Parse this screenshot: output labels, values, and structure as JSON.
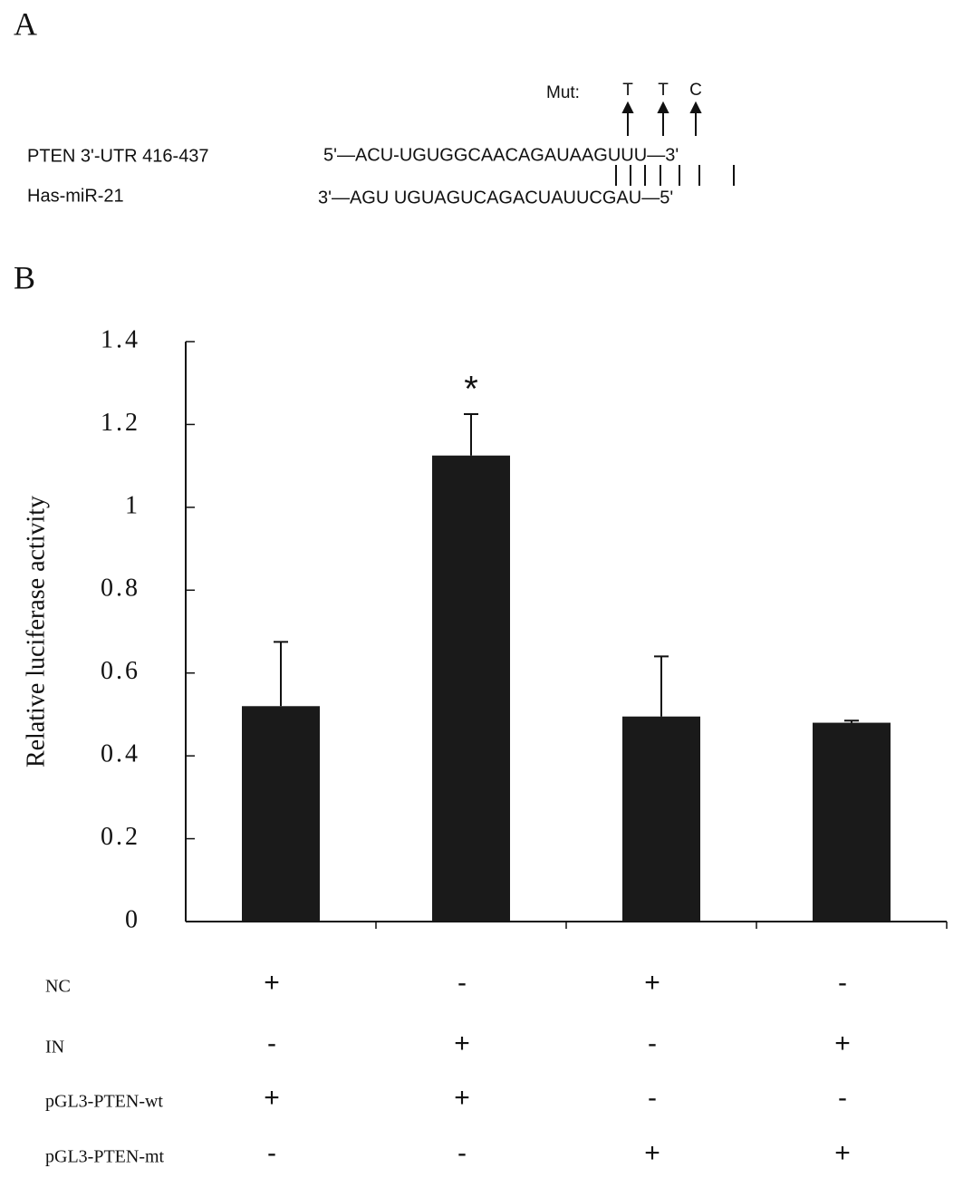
{
  "panel_a": {
    "label": "A",
    "mut_label": "Mut:",
    "mutations": [
      "T",
      "T",
      "C"
    ],
    "rows": [
      {
        "name": "PTEN 3'-UTR 416-437",
        "sequence": "5'—ACU-UGUGGCAACAGAUAAGUUU—3'"
      },
      {
        "name": "Has-miR-21",
        "sequence": "3'—AGU UGUAGUCAGACUAUUCGAU—5'"
      }
    ]
  },
  "chart_data": {
    "type": "bar",
    "panel_label": "B",
    "ylabel": "Relative luciferase activity",
    "categories": [
      null,
      null,
      null,
      null
    ],
    "values": [
      0.52,
      1.125,
      0.495,
      0.48
    ],
    "errors": [
      0.155,
      0.1,
      0.145,
      0.005
    ],
    "significance": [
      null,
      "*",
      null,
      null
    ],
    "color": "#1a1a1a",
    "ylim": [
      0,
      1.4
    ],
    "yticks": [
      0,
      0.2,
      0.4,
      0.6,
      0.8,
      1,
      1.2,
      1.4
    ],
    "grid": false,
    "conditions": [
      {
        "name": "NC",
        "signs": [
          "+",
          "-",
          "+",
          "-"
        ]
      },
      {
        "name": "IN",
        "signs": [
          "-",
          "+",
          "-",
          "+"
        ]
      },
      {
        "name": "pGL3-PTEN-wt",
        "signs": [
          "+",
          "+",
          "-",
          "-"
        ]
      },
      {
        "name": "pGL3-PTEN-mt",
        "signs": [
          "-",
          "-",
          "+",
          "+"
        ]
      }
    ]
  }
}
